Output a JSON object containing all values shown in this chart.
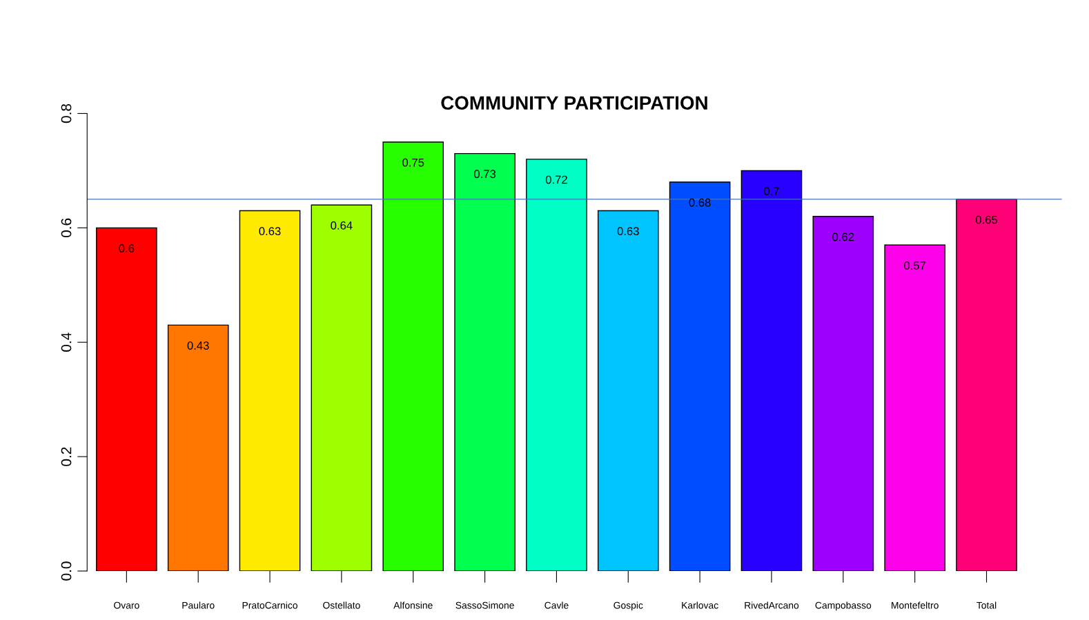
{
  "chart_data": {
    "type": "bar",
    "title": "COMMUNITY PARTICIPATION",
    "categories": [
      "Ovaro",
      "Paularo",
      "PratoCarnico",
      "Ostellato",
      "Alfonsine",
      "SassoSimone",
      "Cavle",
      "Gospic",
      "Karlovac",
      "RivedArcano",
      "Campobasso",
      "Montefeltro",
      "Total"
    ],
    "values": [
      0.6,
      0.43,
      0.63,
      0.64,
      0.75,
      0.73,
      0.72,
      0.63,
      0.68,
      0.7,
      0.62,
      0.57,
      0.65
    ],
    "colors": [
      "#ff0000",
      "#ff7600",
      "#ffeb00",
      "#9dff00",
      "#27ff00",
      "#00ff4e",
      "#00ffc4",
      "#00c4ff",
      "#004eff",
      "#2700ff",
      "#9d00ff",
      "#ff00eb",
      "#ff0076"
    ],
    "ylim": [
      0,
      0.8
    ],
    "yticks": [
      {
        "value": 0,
        "label": "0.0"
      },
      0.2,
      0.4,
      0.6,
      0.8
    ],
    "ref_lines": [
      {
        "axis": "y",
        "value": 0.65,
        "color": "#4472c4"
      }
    ],
    "data_labels": true,
    "grid": false,
    "legend": false
  }
}
